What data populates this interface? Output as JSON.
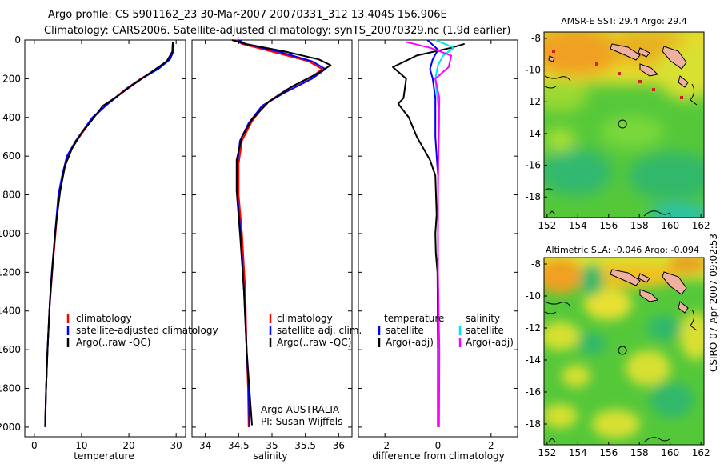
{
  "title": {
    "line1": "Argo profile: CS 5901162_23 30-Mar-2007 20070331_312 13.404S 156.906E",
    "line2": "Climatology: CARS2006. Satellite-adjusted climatology: synTS_20070329.nc (1.9d earlier)"
  },
  "footer_text": "CSIRO 07-Apr-2007 09:02:53",
  "colors": {
    "climatology": "#ff0000",
    "satellite": "#0000ff",
    "argo": "#000000",
    "sat_sal": "#00e5e5",
    "argo_sal": "#ff00ff"
  },
  "chart_data": [
    {
      "type": "line",
      "xlabel": "temperature",
      "ylabel": "",
      "xlim": [
        -2,
        32
      ],
      "ylim": [
        2050,
        0
      ],
      "x_ticks": [
        "0",
        "10",
        "20",
        "30"
      ],
      "y_ticks": [
        "0",
        "200",
        "400",
        "600",
        "800",
        "1000",
        "1200",
        "1400",
        "1600",
        "1800",
        "2000"
      ],
      "legend": {
        "placement": "bottom-right",
        "entries": [
          "climatology",
          "satellite-adjusted climatology",
          "Argo(..raw -QC)"
        ]
      },
      "series": [
        {
          "name": "climatology",
          "points": [
            [
              29.3,
              20
            ],
            [
              29.2,
              60
            ],
            [
              28.5,
              100
            ],
            [
              26,
              150
            ],
            [
              22.5,
              200
            ],
            [
              19.5,
              250
            ],
            [
              15.5,
              330
            ],
            [
              12.5,
              400
            ],
            [
              9,
              520
            ],
            [
              7,
              600
            ],
            [
              6,
              700
            ],
            [
              5.2,
              800
            ],
            [
              4.5,
              1000
            ],
            [
              3.8,
              1200
            ],
            [
              3.2,
              1400
            ],
            [
              2.8,
              1600
            ],
            [
              2.5,
              1800
            ],
            [
              2.3,
              2000
            ]
          ]
        },
        {
          "name": "satellite-adjusted climatology",
          "points": [
            [
              29.5,
              20
            ],
            [
              29.4,
              60
            ],
            [
              28.7,
              100
            ],
            [
              26.2,
              150
            ],
            [
              22.7,
              200
            ],
            [
              19.7,
              250
            ],
            [
              15.6,
              330
            ],
            [
              12.3,
              400
            ],
            [
              8.8,
              520
            ],
            [
              6.9,
              600
            ],
            [
              5.9,
              700
            ],
            [
              5.1,
              800
            ],
            [
              4.4,
              1000
            ],
            [
              3.7,
              1200
            ],
            [
              3.2,
              1400
            ],
            [
              2.8,
              1600
            ],
            [
              2.5,
              1800
            ],
            [
              2.3,
              2000
            ]
          ]
        },
        {
          "name": "Argo(..raw -QC)",
          "points": [
            [
              29.3,
              10
            ],
            [
              29.2,
              60
            ],
            [
              28,
              110
            ],
            [
              24.5,
              170
            ],
            [
              21,
              230
            ],
            [
              17,
              300
            ],
            [
              14.5,
              340
            ],
            [
              12,
              420
            ],
            [
              10,
              480
            ],
            [
              8,
              560
            ],
            [
              6.5,
              650
            ],
            [
              5.5,
              780
            ],
            [
              4.6,
              950
            ],
            [
              3.9,
              1150
            ],
            [
              3.3,
              1350
            ],
            [
              2.8,
              1600
            ],
            [
              2.5,
              1800
            ],
            [
              2.3,
              1990
            ]
          ]
        }
      ]
    },
    {
      "type": "line",
      "xlabel": "salinity",
      "ylabel": "",
      "xlim": [
        33.8,
        36.2
      ],
      "ylim": [
        2050,
        0
      ],
      "x_ticks": [
        "34",
        "34.5",
        "35",
        "35.5",
        "36"
      ],
      "legend": {
        "placement": "bottom-right",
        "entries": [
          "climatology",
          "satellite adj. clim.",
          "Argo(..raw -QC)"
        ]
      },
      "annotation": [
        "Argo AUSTRALIA",
        "PI: Susan Wijffels"
      ],
      "series": [
        {
          "name": "climatology",
          "points": [
            [
              34.45,
              0
            ],
            [
              34.55,
              20
            ],
            [
              35.0,
              60
            ],
            [
              35.55,
              110
            ],
            [
              35.75,
              150
            ],
            [
              35.6,
              190
            ],
            [
              35.2,
              260
            ],
            [
              34.9,
              330
            ],
            [
              34.7,
              420
            ],
            [
              34.55,
              520
            ],
            [
              34.5,
              640
            ],
            [
              34.5,
              800
            ],
            [
              34.55,
              1000
            ],
            [
              34.6,
              1300
            ],
            [
              34.62,
              1600
            ],
            [
              34.64,
              1800
            ],
            [
              34.65,
              2000
            ]
          ]
        },
        {
          "name": "satellite adj. clim.",
          "points": [
            [
              34.5,
              0
            ],
            [
              34.6,
              20
            ],
            [
              35.1,
              60
            ],
            [
              35.6,
              110
            ],
            [
              35.8,
              150
            ],
            [
              35.6,
              200
            ],
            [
              35.2,
              270
            ],
            [
              34.85,
              340
            ],
            [
              34.65,
              430
            ],
            [
              34.52,
              520
            ],
            [
              34.48,
              640
            ],
            [
              34.48,
              800
            ],
            [
              34.53,
              1000
            ],
            [
              34.58,
              1300
            ],
            [
              34.62,
              1600
            ],
            [
              34.65,
              1800
            ],
            [
              34.66,
              2000
            ]
          ]
        },
        {
          "name": "Argo(..raw -QC)",
          "points": [
            [
              34.4,
              0
            ],
            [
              34.6,
              20
            ],
            [
              35.2,
              60
            ],
            [
              35.7,
              100
            ],
            [
              35.88,
              130
            ],
            [
              35.7,
              170
            ],
            [
              35.3,
              240
            ],
            [
              34.95,
              320
            ],
            [
              34.7,
              410
            ],
            [
              34.55,
              500
            ],
            [
              34.47,
              620
            ],
            [
              34.47,
              780
            ],
            [
              34.52,
              1000
            ],
            [
              34.58,
              1300
            ],
            [
              34.62,
              1600
            ],
            [
              34.66,
              1800
            ],
            [
              34.7,
              1990
            ]
          ]
        }
      ]
    },
    {
      "type": "line",
      "xlabel": "difference from climatology",
      "ylabel": "",
      "xlim": [
        -3,
        3
      ],
      "ylim": [
        2050,
        0
      ],
      "x_ticks": [
        "-2",
        "0",
        "2"
      ],
      "legend": {
        "placement": "bottom-center",
        "entries": [
          "temperature",
          "satellite",
          "Argo(-adj)",
          "salinity",
          "satellite",
          "Argo(-adj)"
        ]
      },
      "series": [
        {
          "name": "satellite",
          "points": [
            [
              -0.4,
              0
            ],
            [
              0,
              50
            ],
            [
              -0.2,
              100
            ],
            [
              -0.3,
              150
            ],
            [
              -0.2,
              200
            ],
            [
              -0.1,
              300
            ],
            [
              -0.1,
              500
            ],
            [
              0,
              700
            ],
            [
              0,
              800
            ],
            [
              0,
              1200
            ],
            [
              0,
              1600
            ],
            [
              0,
              2000
            ]
          ]
        },
        {
          "name": "Argo(-adj)",
          "points": [
            [
              1.0,
              20
            ],
            [
              0.5,
              40
            ],
            [
              -0.8,
              80
            ],
            [
              -1.7,
              140
            ],
            [
              -1.2,
              200
            ],
            [
              -1.3,
              300
            ],
            [
              -1.5,
              330
            ],
            [
              -1.1,
              400
            ],
            [
              -0.8,
              500
            ],
            [
              -0.3,
              620
            ],
            [
              -0.1,
              700
            ],
            [
              -0.05,
              900
            ],
            [
              -0.1,
              1000
            ],
            [
              -0.08,
              1100
            ],
            [
              -0.02,
              1200
            ],
            [
              0,
              1600
            ],
            [
              0,
              2000
            ]
          ]
        },
        {
          "name": "satellite",
          "points": [
            [
              -0.1,
              0
            ],
            [
              0.6,
              40
            ],
            [
              0.2,
              80
            ],
            [
              0,
              130
            ],
            [
              -0.1,
              200
            ],
            [
              0.05,
              400
            ],
            [
              0,
              700
            ],
            [
              0,
              1200
            ],
            [
              0.02,
              1600
            ],
            [
              0.02,
              2000
            ]
          ]
        },
        {
          "name": "Argo(-adj)",
          "points": [
            [
              -1.2,
              10
            ],
            [
              -0.3,
              40
            ],
            [
              0.5,
              80
            ],
            [
              0.4,
              140
            ],
            [
              -0.1,
              200
            ],
            [
              0.05,
              300
            ],
            [
              0.02,
              500
            ],
            [
              0,
              800
            ],
            [
              0,
              1200
            ],
            [
              0.05,
              1600
            ],
            [
              0.04,
              2000
            ]
          ]
        }
      ]
    },
    {
      "type": "heatmap",
      "title": "AMSR-E SST: 29.4  Argo: 29.4",
      "xlim": [
        151.8,
        162.2
      ],
      "ylim": [
        -19.3,
        -7.6
      ],
      "x_ticks": [
        "152",
        "154",
        "156",
        "158",
        "160",
        "162"
      ],
      "y_ticks": [
        "-8",
        "-10",
        "-12",
        "-14",
        "-16",
        "-18"
      ],
      "marker": [
        156.9,
        -13.4
      ]
    },
    {
      "type": "heatmap",
      "title": "Altimetric SLA: -0.046  Argo: -0.094",
      "xlim": [
        151.8,
        162.2
      ],
      "ylim": [
        -19.3,
        -7.6
      ],
      "x_ticks": [
        "152",
        "154",
        "156",
        "158",
        "160",
        "162"
      ],
      "y_ticks": [
        "-8",
        "-10",
        "-12",
        "-14",
        "-16",
        "-18"
      ],
      "marker": [
        156.9,
        -13.4
      ]
    }
  ]
}
